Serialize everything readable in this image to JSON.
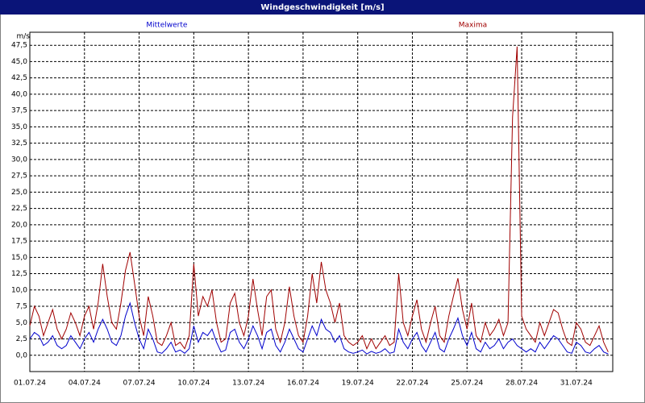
{
  "chart_data": {
    "type": "line",
    "title": "Windgeschwindigkeit [m/s]",
    "y_label": "m/s",
    "grid": true,
    "xlim": [
      0,
      32
    ],
    "ylim": [
      -2.5,
      49.5
    ],
    "xticks": [
      {
        "value": 0,
        "label": "01.07.24"
      },
      {
        "value": 3,
        "label": "04.07.24"
      },
      {
        "value": 6,
        "label": "07.07.24"
      },
      {
        "value": 9,
        "label": "10.07.24"
      },
      {
        "value": 12,
        "label": "13.07.24"
      },
      {
        "value": 15,
        "label": "16.07.24"
      },
      {
        "value": 18,
        "label": "19.07.24"
      },
      {
        "value": 21,
        "label": "22.07.24"
      },
      {
        "value": 24,
        "label": "25.07.24"
      },
      {
        "value": 27,
        "label": "28.07.24"
      },
      {
        "value": 30,
        "label": "31.07.24"
      }
    ],
    "yticks": [
      {
        "value": 0,
        "label": "0,0"
      },
      {
        "value": 2.5,
        "label": "2,5"
      },
      {
        "value": 5,
        "label": "5,0"
      },
      {
        "value": 7.5,
        "label": "7,5"
      },
      {
        "value": 10,
        "label": "10,0"
      },
      {
        "value": 12.5,
        "label": "12,5"
      },
      {
        "value": 15,
        "label": "15,0"
      },
      {
        "value": 17.5,
        "label": "17,5"
      },
      {
        "value": 20,
        "label": "20,0"
      },
      {
        "value": 22.5,
        "label": "22,5"
      },
      {
        "value": 25,
        "label": "25,0"
      },
      {
        "value": 27.5,
        "label": "27,5"
      },
      {
        "value": 30,
        "label": "30,0"
      },
      {
        "value": 32.5,
        "label": "32,5"
      },
      {
        "value": 35,
        "label": "35,0"
      },
      {
        "value": 37.5,
        "label": "37,5"
      },
      {
        "value": 40,
        "label": "40,0"
      },
      {
        "value": 42.5,
        "label": "42,5"
      },
      {
        "value": 45,
        "label": "45,0"
      },
      {
        "value": 47.5,
        "label": "47,5"
      }
    ],
    "x": [
      0,
      0.25,
      0.5,
      0.75,
      1,
      1.25,
      1.5,
      1.75,
      2,
      2.25,
      2.5,
      2.75,
      3,
      3.25,
      3.5,
      3.75,
      4,
      4.25,
      4.5,
      4.75,
      5,
      5.25,
      5.5,
      5.75,
      6,
      6.25,
      6.5,
      6.75,
      7,
      7.25,
      7.5,
      7.75,
      8,
      8.25,
      8.5,
      8.75,
      9,
      9.25,
      9.5,
      9.75,
      10,
      10.25,
      10.5,
      10.75,
      11,
      11.25,
      11.5,
      11.75,
      12,
      12.25,
      12.5,
      12.75,
      13,
      13.25,
      13.5,
      13.75,
      14,
      14.25,
      14.5,
      14.75,
      15,
      15.25,
      15.5,
      15.75,
      16,
      16.25,
      16.5,
      16.75,
      17,
      17.25,
      17.5,
      17.75,
      18,
      18.25,
      18.5,
      18.75,
      19,
      19.25,
      19.5,
      19.75,
      20,
      20.25,
      20.5,
      20.75,
      21,
      21.25,
      21.5,
      21.75,
      22,
      22.25,
      22.5,
      22.75,
      23,
      23.25,
      23.5,
      23.75,
      24,
      24.25,
      24.5,
      24.75,
      25,
      25.25,
      25.5,
      25.75,
      26,
      26.25,
      26.5,
      26.75,
      27,
      27.25,
      27.5,
      27.75,
      28,
      28.25,
      28.5,
      28.75,
      29,
      29.25,
      29.5,
      29.75,
      30,
      30.25,
      30.5,
      30.75,
      31,
      31.25,
      31.5,
      31.75
    ],
    "series": [
      {
        "name": "Mittelwerte",
        "color": "#0000cc",
        "legend_x": 0.235,
        "values": [
          2.5,
          3.5,
          3,
          1.5,
          2,
          3,
          1.5,
          1,
          1.5,
          3,
          2,
          1,
          2.5,
          3.5,
          2,
          4,
          5.5,
          4,
          2,
          1.5,
          3,
          6,
          8,
          5,
          2.5,
          1,
          4,
          2.5,
          0.5,
          0.3,
          1,
          2,
          0.5,
          0.8,
          0.3,
          1,
          4.5,
          2,
          3.5,
          3,
          4,
          2,
          0.5,
          0.8,
          3.5,
          4,
          2,
          1,
          2.5,
          4.5,
          3,
          1,
          3.5,
          4,
          1.5,
          0.5,
          2,
          4,
          2.5,
          1,
          0.5,
          2.5,
          4.5,
          3,
          5.5,
          4,
          3.5,
          2,
          3,
          1,
          0.5,
          0.3,
          0.5,
          0.8,
          0.2,
          0.6,
          0.3,
          0.5,
          1,
          0.3,
          0.5,
          4,
          2,
          1,
          2.5,
          3.5,
          1.5,
          0.5,
          2,
          3.5,
          1,
          0.5,
          2.5,
          4,
          5.7,
          3,
          1.5,
          3.5,
          1,
          0.5,
          2,
          1,
          1.5,
          2.5,
          1,
          2,
          2.5,
          1.5,
          1,
          0.5,
          1,
          0.5,
          2,
          1,
          2,
          3,
          2.5,
          1.5,
          0.5,
          0.3,
          2,
          1.5,
          0.5,
          0.3,
          1,
          1.5,
          0.5,
          0.2
        ]
      },
      {
        "name": "Maxima",
        "color": "#a00000",
        "legend_x": 0.76,
        "values": [
          4.5,
          7.5,
          6,
          3,
          5,
          7,
          4,
          2.5,
          4,
          6.5,
          5,
          3,
          6,
          7.5,
          4,
          8,
          14,
          9,
          5,
          4,
          8,
          13,
          15.8,
          11,
          6,
          3,
          9,
          6,
          2,
          1.5,
          3,
          5,
          1.5,
          2,
          1,
          3,
          14,
          6,
          9,
          7.5,
          10,
          5,
          2,
          2.5,
          8,
          9.5,
          5,
          3,
          6,
          11.7,
          7,
          3,
          9,
          10,
          4,
          2,
          5,
          10.5,
          6,
          3,
          2,
          6,
          12.5,
          8,
          14.3,
          10,
          8,
          5,
          8,
          3,
          2,
          1.5,
          2,
          3,
          1,
          2.5,
          1,
          2,
          3,
          1.5,
          2,
          12.5,
          5,
          3,
          6,
          8.5,
          4,
          2,
          5,
          7.5,
          3,
          2,
          6,
          9,
          11.8,
          7,
          4,
          8,
          3,
          2,
          5,
          3,
          4,
          5.5,
          3,
          5,
          36.5,
          47.3,
          6,
          4,
          3,
          2,
          5,
          3,
          5,
          7,
          6.5,
          4,
          2,
          1.5,
          5,
          4,
          2,
          1.5,
          3,
          4.5,
          2,
          0.5
        ]
      }
    ]
  }
}
